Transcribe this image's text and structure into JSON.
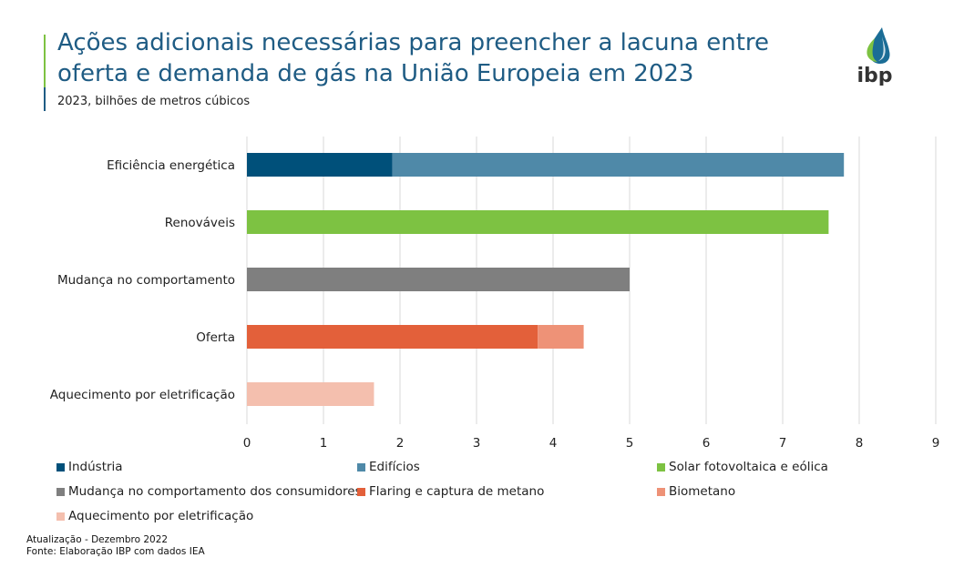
{
  "header": {
    "title": "Ações adicionais necessárias para preencher a lacuna entre oferta e demanda de gás na União Europeia em 2023",
    "subtitle": "2023, bilhões de metros cúbicos",
    "logo_text": "ibp"
  },
  "chart_data": {
    "type": "bar",
    "orientation": "horizontal",
    "stacked": true,
    "title": "Ações adicionais necessárias para preencher a lacuna entre oferta e demanda de gás na União Europeia em 2023",
    "subtitle": "2023, bilhões de metros cúbicos",
    "categories": [
      "Eficiência energética",
      "Renováveis",
      "Mudança no comportamento",
      "Oferta",
      "Aquecimento por eletrificação"
    ],
    "series": [
      {
        "name": "Indústria",
        "color": "#00507a",
        "values": [
          1.9,
          0,
          0,
          0,
          0
        ]
      },
      {
        "name": "Edifícios",
        "color": "#4f89a8",
        "values": [
          5.9,
          0,
          0,
          0,
          0
        ]
      },
      {
        "name": "Solar fotovoltaica e eólica",
        "color": "#7dc242",
        "values": [
          0,
          7.6,
          0,
          0,
          0
        ]
      },
      {
        "name": "Mudança no comportamento dos consumidores",
        "color": "#7f7f7f",
        "values": [
          0,
          0,
          5.0,
          0,
          0
        ]
      },
      {
        "name": "Flaring e captura de metano",
        "color": "#e3603a",
        "values": [
          0,
          0,
          0,
          3.8,
          0
        ]
      },
      {
        "name": "Biometano",
        "color": "#ee9277",
        "values": [
          0,
          0,
          0,
          0.6,
          0
        ]
      },
      {
        "name": "Aquecimento por eletrificação",
        "color": "#f4bfae",
        "values": [
          0,
          0,
          0,
          0,
          1.66
        ]
      }
    ],
    "xlim": [
      0,
      9
    ],
    "xticks": [
      "0",
      "1",
      "2",
      "3",
      "4",
      "5",
      "6",
      "7",
      "8",
      "9"
    ],
    "grid": true,
    "legend_position": "bottom",
    "xlabel": "",
    "ylabel": ""
  },
  "footer": {
    "update": "Atualização - Dezembro 2022",
    "source": "Fonte: Elaboração IBP com dados IEA"
  }
}
